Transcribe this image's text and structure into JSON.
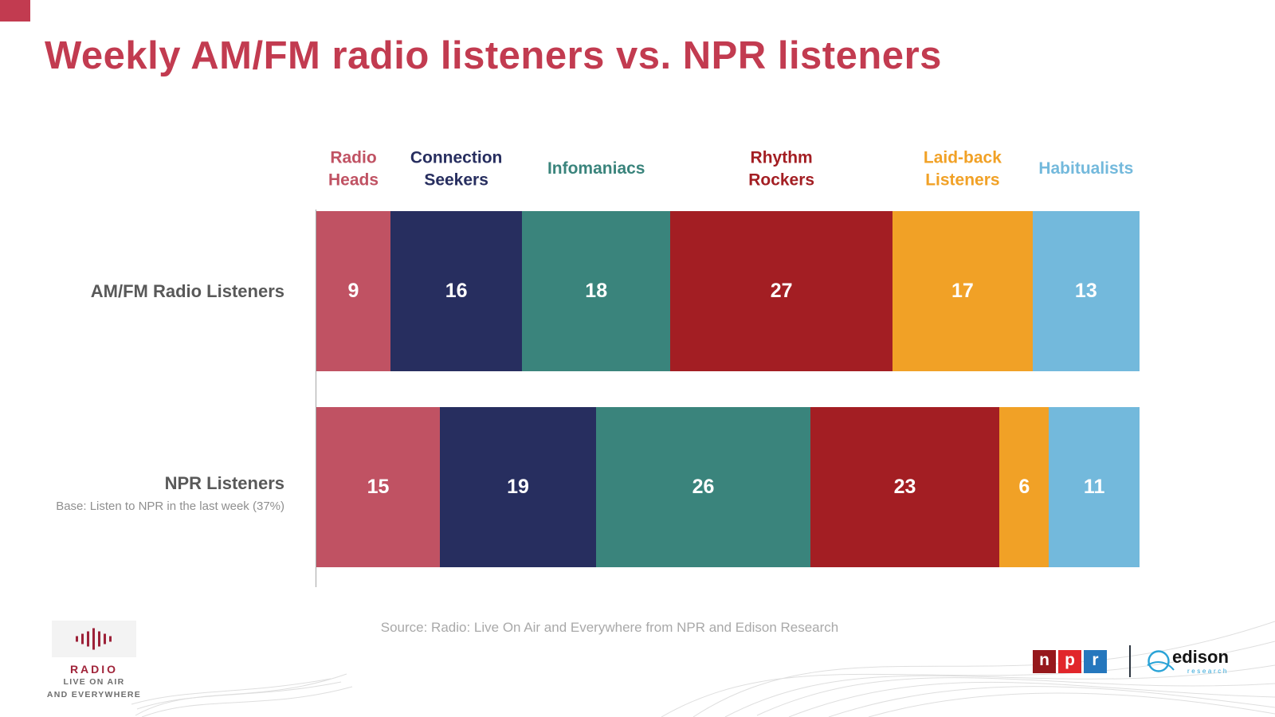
{
  "page": {
    "title": "Weekly AM/FM radio listeners vs. NPR listeners",
    "source": "Source: Radio: Live On Air and Everywhere from NPR and Edison Research"
  },
  "chart_data": {
    "type": "bar",
    "variant": "horizontal-stacked",
    "unit": "percent",
    "xlim": [
      0,
      100
    ],
    "grid": false,
    "legend_position": "top",
    "categories": [
      "Radio Heads",
      "Connection Seekers",
      "Infomaniacs",
      "Rhythm Rockers",
      "Laid-back Listeners",
      "Habitualists"
    ],
    "segments": [
      {
        "label": "Radio Heads",
        "label_lines": [
          "Radio",
          "Heads"
        ],
        "color": "#c05263"
      },
      {
        "label": "Connection Seekers",
        "label_lines": [
          "Connection",
          "Seekers"
        ],
        "color": "#272e5f"
      },
      {
        "label": "Infomaniacs",
        "label_lines": [
          "Infomaniacs"
        ],
        "color": "#3a847c"
      },
      {
        "label": "Rhythm Rockers",
        "label_lines": [
          "Rhythm",
          "Rockers"
        ],
        "color": "#a31e23"
      },
      {
        "label": "Laid-back Listeners",
        "label_lines": [
          "Laid-back",
          "Listeners"
        ],
        "color": "#f1a126"
      },
      {
        "label": "Habitualists",
        "label_lines": [
          "Habitualists"
        ],
        "color": "#73b9dc"
      }
    ],
    "rows": [
      {
        "label": "AM/FM Radio Listeners",
        "values": [
          9,
          16,
          18,
          27,
          17,
          13
        ]
      },
      {
        "label": "NPR Listeners",
        "base_note": "Base: Listen to NPR in the last week (37%)",
        "values": [
          15,
          19,
          26,
          23,
          6,
          11
        ]
      }
    ]
  },
  "branding": {
    "radio_logo": {
      "title": "RADIO",
      "line2": "LIVE ON AIR",
      "line3": "AND EVERYWHERE"
    },
    "npr_logo": {
      "letters": [
        "n",
        "p",
        "r"
      ],
      "colors": [
        "#96181c",
        "#e1262b",
        "#2577bd"
      ]
    },
    "edison_logo": {
      "name": "edison",
      "sub": "research",
      "accent": "#29a3d7"
    }
  }
}
